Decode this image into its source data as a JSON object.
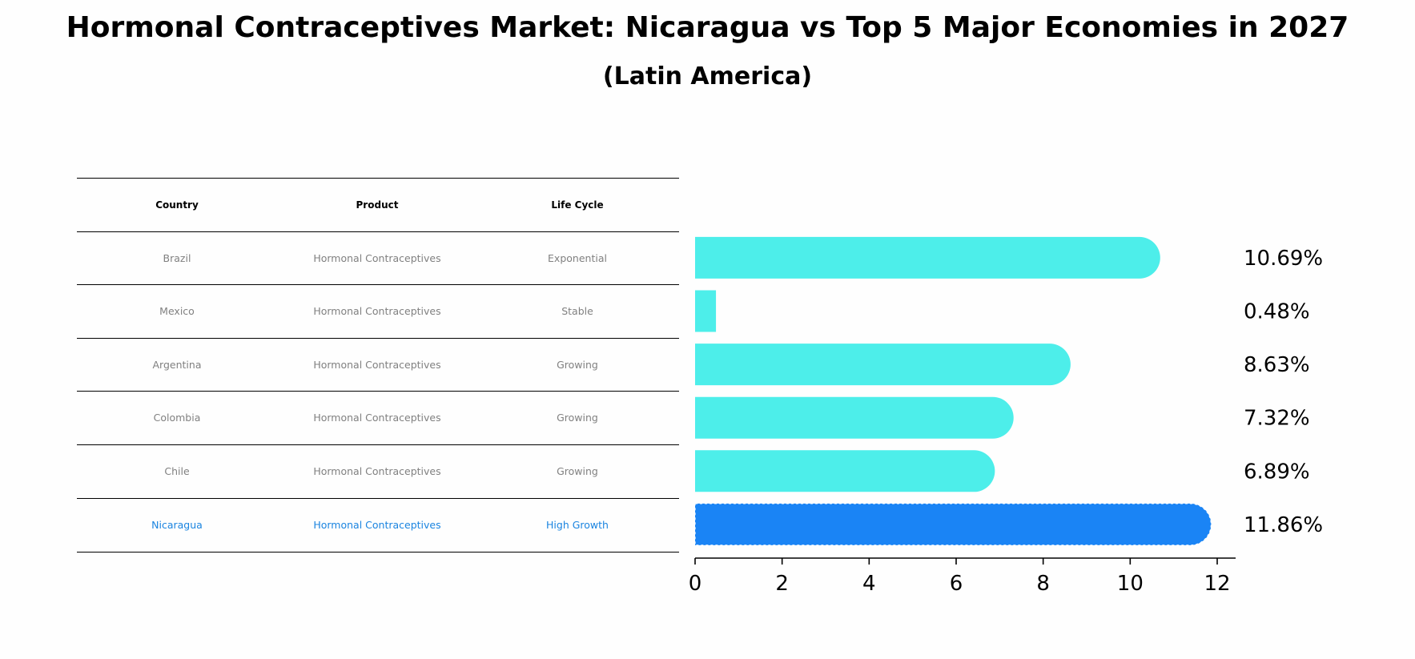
{
  "title": "Hormonal Contraceptives Market: Nicaragua vs Top 5 Major Economies in 2027",
  "subtitle": "(Latin America)",
  "table": {
    "headers": [
      "Country",
      "Product",
      "Life Cycle"
    ],
    "rows": [
      {
        "country": "Brazil",
        "product": "Hormonal Contraceptives",
        "life_cycle": "Exponential"
      },
      {
        "country": "Mexico",
        "product": "Hormonal Contraceptives",
        "life_cycle": "Stable"
      },
      {
        "country": "Argentina",
        "product": "Hormonal Contraceptives",
        "life_cycle": "Growing"
      },
      {
        "country": "Colombia",
        "product": "Hormonal Contraceptives",
        "life_cycle": "Growing"
      },
      {
        "country": "Chile",
        "product": "Hormonal Contraceptives",
        "life_cycle": "Growing"
      },
      {
        "country": "Nicaragua",
        "product": "Hormonal Contraceptives",
        "life_cycle": "High Growth"
      }
    ]
  },
  "colors": {
    "bar": "#4deeea",
    "highlight": "#1a84f5",
    "highlight_text": "#1a84e0",
    "row_text": "#808080"
  },
  "chart_data": {
    "type": "bar",
    "orientation": "horizontal",
    "categories": [
      "Brazil",
      "Mexico",
      "Argentina",
      "Colombia",
      "Chile",
      "Nicaragua"
    ],
    "values": [
      10.69,
      0.48,
      8.63,
      7.32,
      6.89,
      11.86
    ],
    "value_labels": [
      "10.69%",
      "0.48%",
      "8.63%",
      "7.32%",
      "6.89%",
      "11.86%"
    ],
    "highlight": "Nicaragua",
    "xlim": [
      0,
      12.4
    ],
    "xticks": [
      0,
      2,
      4,
      6,
      8,
      10,
      12
    ],
    "xlabel": "",
    "ylabel": "",
    "grid": false,
    "legend": "none"
  }
}
